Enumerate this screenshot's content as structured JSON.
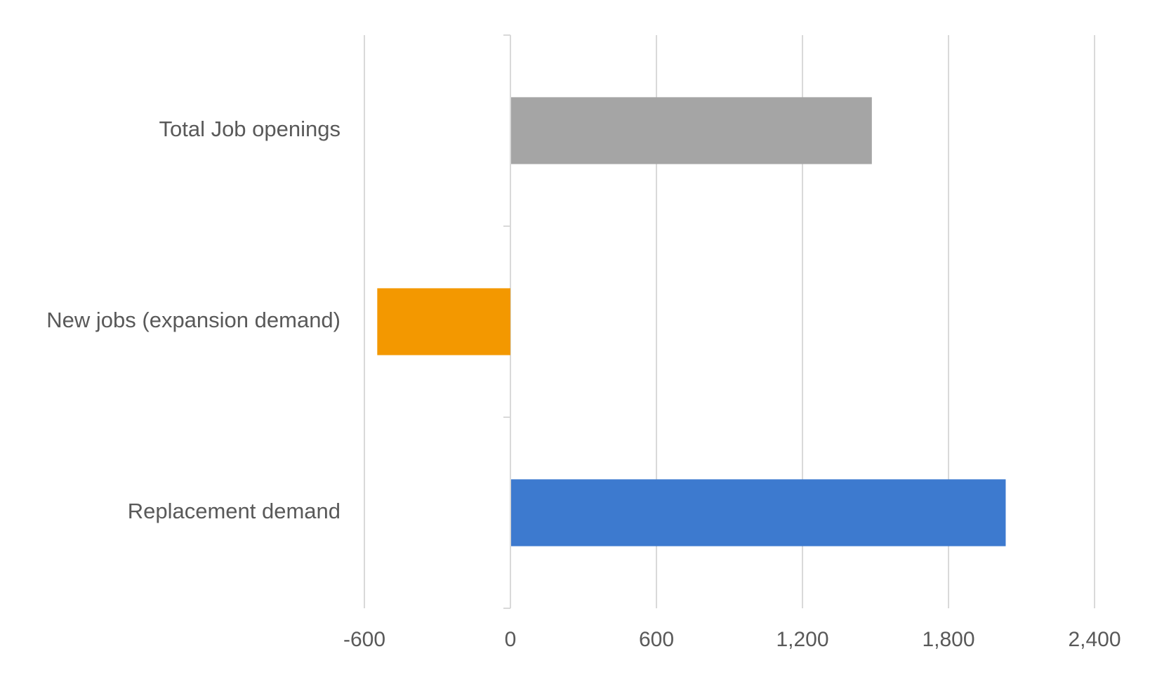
{
  "chart_data": {
    "type": "bar",
    "orientation": "horizontal",
    "categories": [
      "Total Job openings",
      "New jobs (expansion demand)",
      "Replacement demand"
    ],
    "values": [
      1485,
      -550,
      2035
    ],
    "colors": [
      "#a5a5a5",
      "#f39800",
      "#3d7acf"
    ],
    "title": "",
    "xlabel": "",
    "ylabel": "",
    "xlim": [
      -600,
      2400
    ],
    "xticks": [
      -600,
      0,
      600,
      1200,
      1800,
      2400
    ],
    "xtick_labels": [
      "-600",
      "0",
      "600",
      "1,200",
      "1,800",
      "2,400"
    ],
    "grid": true,
    "legend": "none"
  }
}
